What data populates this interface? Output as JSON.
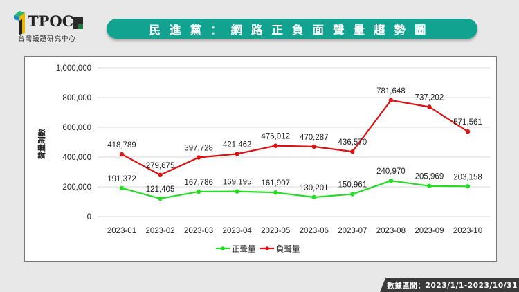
{
  "logo": {
    "text": "TPOC",
    "subtitle": "台灣議題研究中心"
  },
  "title": "民進黨：網路正負面聲量趨勢圖",
  "footer": {
    "text": "數據區間：2023/1/1-2023/10/31"
  },
  "colors": {
    "title_bar": "#11a390",
    "positive": "#22dd22",
    "negative": "#dd1111",
    "footer_bg": "#3a3a3a"
  },
  "chart_data": {
    "type": "line",
    "title": "民進黨：網路正負面聲量趨勢圖",
    "xlabel": "",
    "ylabel": "聲量則數",
    "ylim": [
      0,
      1000000
    ],
    "yticks": [
      0,
      200000,
      400000,
      600000,
      800000,
      1000000
    ],
    "ytick_labels": [
      "0",
      "200,000",
      "400,000",
      "600,000",
      "800,000",
      "1,000,000"
    ],
    "grid": true,
    "legend_position": "bottom",
    "categories": [
      "2023-01",
      "2023-02",
      "2023-03",
      "2023-04",
      "2023-05",
      "2023-06",
      "2023-07",
      "2023-08",
      "2023-09",
      "2023-10"
    ],
    "series": [
      {
        "name": "正聲量",
        "color": "#22dd22",
        "values": [
          191372,
          121405,
          167786,
          169195,
          161907,
          130201,
          150961,
          240970,
          205969,
          203158
        ],
        "labels": [
          "191,372",
          "121,405",
          "167,786",
          "169,195",
          "161,907",
          "130,201",
          "150,961",
          "240,970",
          "205,969",
          "203,158"
        ]
      },
      {
        "name": "負聲量",
        "color": "#dd1111",
        "values": [
          418789,
          279675,
          397728,
          421462,
          476012,
          470287,
          436570,
          781648,
          737202,
          571561
        ],
        "labels": [
          "418,789",
          "279,675",
          "397,728",
          "421,462",
          "476,012",
          "470,287",
          "436,570",
          "781,648",
          "737,202",
          "571,561"
        ]
      }
    ]
  }
}
